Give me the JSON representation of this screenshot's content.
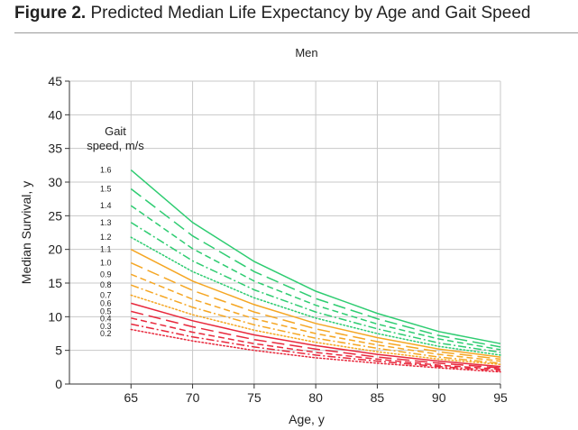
{
  "figure": {
    "label": "Figure 2.",
    "caption": "Predicted Median Life Expectancy by Age and Gait Speed"
  },
  "chart_data": {
    "type": "line",
    "title": "Men",
    "xlabel": "Age, y",
    "ylabel": "Median Survival, y",
    "xlim": [
      60,
      95
    ],
    "ylim": [
      0,
      45
    ],
    "xticks": [
      65,
      70,
      75,
      80,
      85,
      90,
      95
    ],
    "yticks": [
      0,
      5,
      10,
      15,
      20,
      25,
      30,
      35,
      40,
      45
    ],
    "grid": true,
    "legend_title": "Gait speed, m/s",
    "legend_placement": "left, inside plot",
    "x": [
      65,
      70,
      75,
      80,
      85,
      90,
      95
    ],
    "series": [
      {
        "name": "1.6",
        "color": "#2ecc71",
        "dash": "solid",
        "values": [
          31.8,
          24.0,
          18.2,
          13.8,
          10.5,
          7.8,
          6.0
        ]
      },
      {
        "name": "1.5",
        "color": "#2ecc71",
        "dash": "longdash",
        "values": [
          29.0,
          22.0,
          16.7,
          12.7,
          9.7,
          7.2,
          5.5
        ]
      },
      {
        "name": "1.4",
        "color": "#2ecc71",
        "dash": "dash",
        "values": [
          26.5,
          20.1,
          15.3,
          11.7,
          8.9,
          6.7,
          5.1
        ]
      },
      {
        "name": "1.3",
        "color": "#2ecc71",
        "dash": "dashdot",
        "values": [
          24.0,
          18.3,
          14.0,
          10.7,
          8.2,
          6.1,
          4.7
        ]
      },
      {
        "name": "1.2",
        "color": "#2ecc71",
        "dash": "dot",
        "values": [
          21.8,
          16.7,
          12.8,
          9.8,
          7.5,
          5.6,
          4.3
        ]
      },
      {
        "name": "1.1",
        "color": "#f5a623",
        "dash": "solid",
        "values": [
          20.0,
          15.3,
          11.8,
          9.0,
          6.9,
          5.2,
          4.0
        ]
      },
      {
        "name": "1.0",
        "color": "#f5a623",
        "dash": "longdash",
        "values": [
          18.0,
          13.9,
          10.7,
          8.2,
          6.3,
          4.8,
          3.7
        ]
      },
      {
        "name": "0.9",
        "color": "#f5a623",
        "dash": "dash",
        "values": [
          16.3,
          12.6,
          9.7,
          7.5,
          5.8,
          4.4,
          3.4
        ]
      },
      {
        "name": "0.8",
        "color": "#f5a623",
        "dash": "dashdot",
        "values": [
          14.7,
          11.4,
          8.8,
          6.8,
          5.3,
          4.0,
          3.1
        ]
      },
      {
        "name": "0.7",
        "color": "#f5a623",
        "dash": "dot",
        "values": [
          13.2,
          10.3,
          8.0,
          6.2,
          4.8,
          3.7,
          2.9
        ]
      },
      {
        "name": "0.6",
        "color": "#e8283c",
        "dash": "solid",
        "values": [
          12.0,
          9.4,
          7.3,
          5.7,
          4.4,
          3.4,
          2.6
        ]
      },
      {
        "name": "0.5",
        "color": "#e8283c",
        "dash": "longdash",
        "values": [
          10.8,
          8.5,
          6.6,
          5.2,
          4.0,
          3.1,
          2.4
        ]
      },
      {
        "name": "0.4",
        "color": "#e8283c",
        "dash": "dash",
        "values": [
          9.8,
          7.7,
          6.0,
          4.7,
          3.7,
          2.8,
          2.2
        ]
      },
      {
        "name": "0.3",
        "color": "#e8283c",
        "dash": "dashdot",
        "values": [
          8.9,
          7.0,
          5.5,
          4.3,
          3.4,
          2.6,
          2.0
        ]
      },
      {
        "name": "0.2",
        "color": "#e8283c",
        "dash": "dot",
        "values": [
          8.1,
          6.4,
          5.0,
          3.9,
          3.1,
          2.4,
          1.8
        ]
      }
    ]
  }
}
